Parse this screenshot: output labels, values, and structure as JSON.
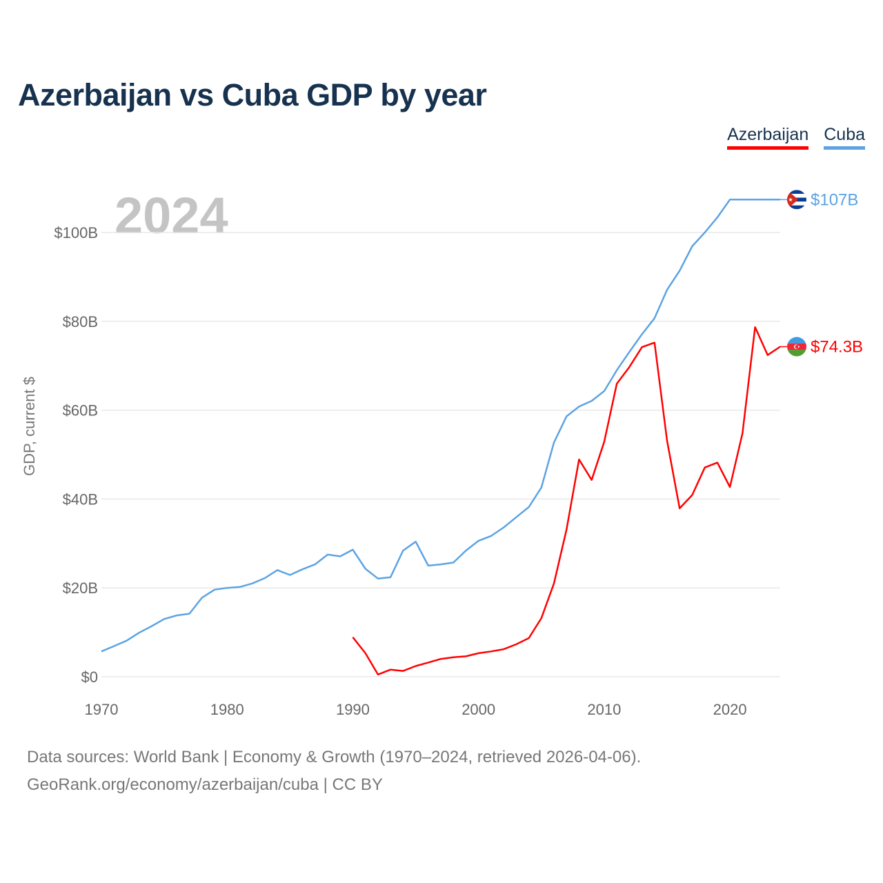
{
  "title": "Azerbaijan vs Cuba GDP by year",
  "year_label": "2024",
  "legend": [
    {
      "name": "Azerbaijan",
      "color": "#ff0000"
    },
    {
      "name": "Cuba",
      "color": "#5ba3e3"
    }
  ],
  "footer": {
    "line1": "Data sources: World Bank | Economy & Growth (1970–2024, retrieved 2026-04-06).",
    "line2": "GeoRank.org/economy/azerbaijan/cuba | CC BY"
  },
  "chart_data": {
    "type": "line",
    "title": "Azerbaijan vs Cuba GDP by year",
    "xlabel": "",
    "ylabel": "GDP, current $",
    "xlim": [
      1970,
      2024
    ],
    "ylim": [
      0,
      110
    ],
    "x_ticks": [
      1970,
      1980,
      1990,
      2000,
      2010,
      2020
    ],
    "x_tick_labels": [
      "1970",
      "1980",
      "1990",
      "2000",
      "2010",
      "2020"
    ],
    "y_ticks": [
      0,
      20,
      40,
      60,
      80,
      100
    ],
    "y_tick_labels": [
      "$0",
      "$20B",
      "$40B",
      "$60B",
      "$80B",
      "$100B"
    ],
    "grid": true,
    "legend_position": "top-right",
    "series": [
      {
        "name": "Cuba",
        "color": "#5ba3e3",
        "end_label": "$107B",
        "flag": "cuba-flag",
        "points": [
          [
            1970,
            5.7
          ],
          [
            1971,
            6.9
          ],
          [
            1972,
            8.1
          ],
          [
            1973,
            9.9
          ],
          [
            1974,
            11.4
          ],
          [
            1975,
            13.0
          ],
          [
            1976,
            13.8
          ],
          [
            1977,
            14.2
          ],
          [
            1978,
            17.8
          ],
          [
            1979,
            19.6
          ],
          [
            1980,
            20.0
          ],
          [
            1981,
            20.2
          ],
          [
            1982,
            21.0
          ],
          [
            1983,
            22.2
          ],
          [
            1984,
            24.0
          ],
          [
            1985,
            22.9
          ],
          [
            1986,
            24.2
          ],
          [
            1987,
            25.3
          ],
          [
            1988,
            27.5
          ],
          [
            1989,
            27.1
          ],
          [
            1990,
            28.6
          ],
          [
            1991,
            24.3
          ],
          [
            1992,
            22.1
          ],
          [
            1993,
            22.4
          ],
          [
            1994,
            28.4
          ],
          [
            1995,
            30.4
          ],
          [
            1996,
            25.0
          ],
          [
            1997,
            25.3
          ],
          [
            1998,
            25.7
          ],
          [
            1999,
            28.4
          ],
          [
            2000,
            30.6
          ],
          [
            2001,
            31.7
          ],
          [
            2002,
            33.6
          ],
          [
            2003,
            35.9
          ],
          [
            2004,
            38.2
          ],
          [
            2005,
            42.6
          ],
          [
            2006,
            52.7
          ],
          [
            2007,
            58.6
          ],
          [
            2008,
            60.8
          ],
          [
            2009,
            62.1
          ],
          [
            2010,
            64.3
          ],
          [
            2011,
            68.99
          ],
          [
            2012,
            73.1
          ],
          [
            2013,
            77.1
          ],
          [
            2014,
            80.7
          ],
          [
            2015,
            87.1
          ],
          [
            2016,
            91.4
          ],
          [
            2017,
            96.9
          ],
          [
            2018,
            100.0
          ],
          [
            2019,
            103.4
          ],
          [
            2020,
            107.4
          ],
          [
            2021,
            107.4
          ],
          [
            2022,
            107.4
          ],
          [
            2023,
            107.4
          ],
          [
            2024,
            107.4
          ]
        ]
      },
      {
        "name": "Azerbaijan",
        "color": "#ff0000",
        "end_label": "$74.3B",
        "flag": "azerbaijan-flag",
        "points": [
          [
            1990,
            8.9
          ],
          [
            1991,
            5.3
          ],
          [
            1992,
            0.5
          ],
          [
            1993,
            1.6
          ],
          [
            1994,
            1.3
          ],
          [
            1995,
            2.4
          ],
          [
            1996,
            3.2
          ],
          [
            1997,
            4.0
          ],
          [
            1998,
            4.4
          ],
          [
            1999,
            4.6
          ],
          [
            2000,
            5.3
          ],
          [
            2001,
            5.7
          ],
          [
            2002,
            6.2
          ],
          [
            2003,
            7.3
          ],
          [
            2004,
            8.7
          ],
          [
            2005,
            13.2
          ],
          [
            2006,
            21.0
          ],
          [
            2007,
            33.1
          ],
          [
            2008,
            48.9
          ],
          [
            2009,
            44.3
          ],
          [
            2010,
            52.9
          ],
          [
            2011,
            65.95
          ],
          [
            2012,
            69.7
          ],
          [
            2013,
            74.2
          ],
          [
            2014,
            75.2
          ],
          [
            2015,
            53.1
          ],
          [
            2016,
            37.9
          ],
          [
            2017,
            40.9
          ],
          [
            2018,
            47.1
          ],
          [
            2019,
            48.2
          ],
          [
            2020,
            42.7
          ],
          [
            2021,
            54.8
          ],
          [
            2022,
            78.7
          ],
          [
            2023,
            72.4
          ],
          [
            2024,
            74.3
          ]
        ]
      }
    ]
  }
}
